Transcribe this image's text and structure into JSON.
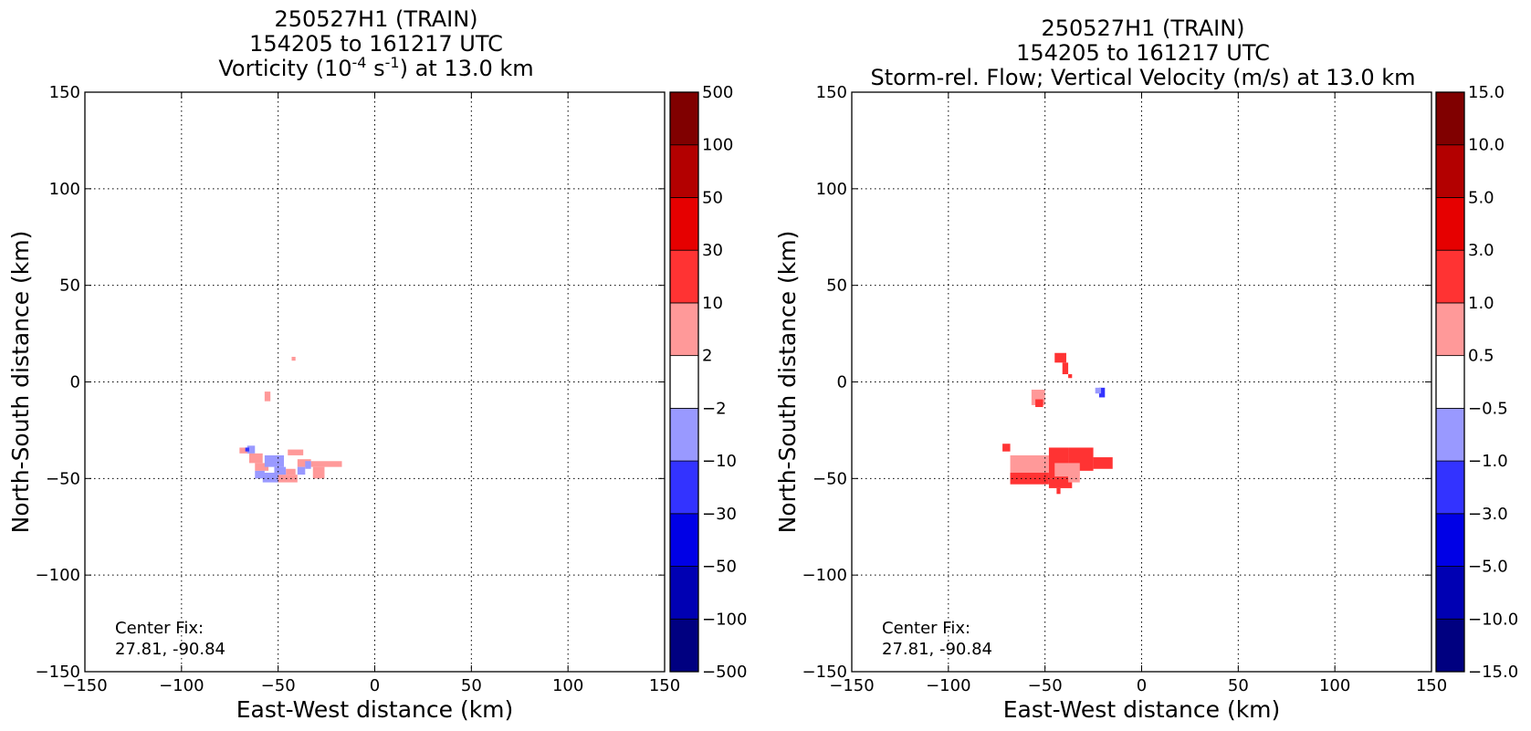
{
  "chart_data": [
    {
      "type": "heatmap",
      "title_lines": [
        "250527H1 (TRAIN)",
        "154205 to 161217 UTC"
      ],
      "title_field": {
        "prefix": "Vorticity (10",
        "sup1": "-4",
        "mid": " s",
        "sup2": "-1",
        "suffix": ") at 13.0 km"
      },
      "xlabel": "East-West distance (km)",
      "ylabel": "North-South distance (km)",
      "xlim": [
        -150,
        150
      ],
      "ylim": [
        -150,
        150
      ],
      "xticks": [
        -150,
        -100,
        -50,
        0,
        50,
        100,
        150
      ],
      "yticks": [
        -150,
        -100,
        -50,
        0,
        50,
        100,
        150
      ],
      "xtick_labels": [
        "−150",
        "−100",
        "−50",
        "0",
        "50",
        "100",
        "150"
      ],
      "ytick_labels": [
        "−150",
        "−100",
        "−50",
        "0",
        "50",
        "100",
        "150"
      ],
      "grid": true,
      "colorbar": {
        "levels": [
          -500,
          -100,
          -50,
          -30,
          -10,
          -2,
          2,
          10,
          30,
          50,
          100,
          500
        ],
        "labels": [
          "−500",
          "−100",
          "−50",
          "−30",
          "−10",
          "−2",
          "2",
          "10",
          "30",
          "50",
          "100",
          "500"
        ],
        "colors": [
          "#000080",
          "#0000b3",
          "#0000e6",
          "#3333ff",
          "#9999ff",
          "#ffffff",
          "#ff9999",
          "#ff3333",
          "#e60000",
          "#b30000",
          "#800000"
        ]
      },
      "annotation": [
        "Center Fix:",
        "27.81, -90.84"
      ],
      "regions": [
        {
          "bin": 6,
          "x": [
            -43,
            -41
          ],
          "y": [
            11,
            13
          ]
        },
        {
          "bin": 6,
          "x": [
            -57,
            -54
          ],
          "y": [
            -10,
            -5
          ]
        },
        {
          "bin": 6,
          "x": [
            -70,
            -63
          ],
          "y": [
            -37,
            -34
          ]
        },
        {
          "bin": 6,
          "x": [
            -65,
            -58
          ],
          "y": [
            -42,
            -37
          ]
        },
        {
          "bin": 6,
          "x": [
            -62,
            -55
          ],
          "y": [
            -46,
            -42
          ]
        },
        {
          "bin": 6,
          "x": [
            -45,
            -37
          ],
          "y": [
            -38,
            -35
          ]
        },
        {
          "bin": 6,
          "x": [
            -40,
            -33
          ],
          "y": [
            -44,
            -40
          ]
        },
        {
          "bin": 6,
          "x": [
            -33,
            -17
          ],
          "y": [
            -44,
            -41
          ]
        },
        {
          "bin": 6,
          "x": [
            -32,
            -26
          ],
          "y": [
            -50,
            -44
          ]
        },
        {
          "bin": 6,
          "x": [
            -50,
            -40
          ],
          "y": [
            -52,
            -48
          ]
        },
        {
          "bin": 6,
          "x": [
            -46,
            -41
          ],
          "y": [
            -48,
            -45
          ]
        },
        {
          "bin": 4,
          "x": [
            -66,
            -62
          ],
          "y": [
            -37,
            -33
          ]
        },
        {
          "bin": 4,
          "x": [
            -57,
            -47
          ],
          "y": [
            -44,
            -38
          ]
        },
        {
          "bin": 4,
          "x": [
            -62,
            -57
          ],
          "y": [
            -50,
            -46
          ]
        },
        {
          "bin": 4,
          "x": [
            -58,
            -50
          ],
          "y": [
            -52,
            -47
          ]
        },
        {
          "bin": 4,
          "x": [
            -52,
            -46
          ],
          "y": [
            -48,
            -44
          ]
        },
        {
          "bin": 4,
          "x": [
            -40,
            -36
          ],
          "y": [
            -48,
            -44
          ]
        },
        {
          "bin": 4,
          "x": [
            -36,
            -33
          ],
          "y": [
            -45,
            -41
          ]
        },
        {
          "bin": 3,
          "x": [
            -67,
            -65
          ],
          "y": [
            -36,
            -34
          ]
        }
      ]
    },
    {
      "type": "heatmap",
      "title_lines": [
        "250527H1 (TRAIN)",
        "154205 to 161217 UTC",
        "Storm-rel. Flow; Vertical Velocity (m/s) at 13.0 km"
      ],
      "xlabel": "East-West distance (km)",
      "ylabel": "North-South distance (km)",
      "xlim": [
        -150,
        150
      ],
      "ylim": [
        -150,
        150
      ],
      "xticks": [
        -150,
        -100,
        -50,
        0,
        50,
        100,
        150
      ],
      "yticks": [
        -150,
        -100,
        -50,
        0,
        50,
        100,
        150
      ],
      "xtick_labels": [
        "−150",
        "−100",
        "−50",
        "0",
        "50",
        "100",
        "150"
      ],
      "ytick_labels": [
        "−150",
        "−100",
        "−50",
        "0",
        "50",
        "100",
        "150"
      ],
      "grid": true,
      "colorbar": {
        "levels": [
          -15.0,
          -10.0,
          -5.0,
          -3.0,
          -1.0,
          -0.5,
          0.5,
          1.0,
          3.0,
          5.0,
          10.0,
          15.0
        ],
        "labels": [
          "−15.0",
          "−10.0",
          "−5.0",
          "−3.0",
          "−1.0",
          "−0.5",
          "0.5",
          "1.0",
          "3.0",
          "5.0",
          "10.0",
          "15.0"
        ],
        "colors": [
          "#000080",
          "#0000b3",
          "#0000e6",
          "#3333ff",
          "#9999ff",
          "#ffffff",
          "#ff9999",
          "#ff3333",
          "#e60000",
          "#b30000",
          "#800000"
        ]
      },
      "annotation": [
        "Center Fix:",
        "27.81, -90.84"
      ],
      "regions": [
        {
          "bin": 7,
          "x": [
            -45,
            -39
          ],
          "y": [
            10,
            15
          ]
        },
        {
          "bin": 7,
          "x": [
            -41,
            -38
          ],
          "y": [
            4,
            10
          ]
        },
        {
          "bin": 7,
          "x": [
            -38,
            -36
          ],
          "y": [
            2,
            4
          ]
        },
        {
          "bin": 6,
          "x": [
            -57,
            -50
          ],
          "y": [
            -12,
            -4
          ]
        },
        {
          "bin": 7,
          "x": [
            -55,
            -51
          ],
          "y": [
            -13,
            -9
          ]
        },
        {
          "bin": 7,
          "x": [
            -72,
            -68
          ],
          "y": [
            -36,
            -32
          ]
        },
        {
          "bin": 6,
          "x": [
            -68,
            -48
          ],
          "y": [
            -50,
            -38
          ]
        },
        {
          "bin": 7,
          "x": [
            -68,
            -48
          ],
          "y": [
            -53,
            -47
          ]
        },
        {
          "bin": 7,
          "x": [
            -48,
            -38
          ],
          "y": [
            -50,
            -34
          ]
        },
        {
          "bin": 7,
          "x": [
            -38,
            -25
          ],
          "y": [
            -46,
            -34
          ]
        },
        {
          "bin": 7,
          "x": [
            -25,
            -15
          ],
          "y": [
            -45,
            -39
          ]
        },
        {
          "bin": 7,
          "x": [
            -48,
            -36
          ],
          "y": [
            -55,
            -50
          ]
        },
        {
          "bin": 7,
          "x": [
            -44,
            -42
          ],
          "y": [
            -58,
            -55
          ]
        },
        {
          "bin": 6,
          "x": [
            -45,
            -32
          ],
          "y": [
            -49,
            -42
          ]
        },
        {
          "bin": 6,
          "x": [
            -38,
            -32
          ],
          "y": [
            -52,
            -46
          ]
        },
        {
          "bin": 3,
          "x": [
            -22,
            -19
          ],
          "y": [
            -8,
            -3
          ]
        },
        {
          "bin": 4,
          "x": [
            -24,
            -21
          ],
          "y": [
            -6,
            -3
          ]
        }
      ]
    }
  ]
}
